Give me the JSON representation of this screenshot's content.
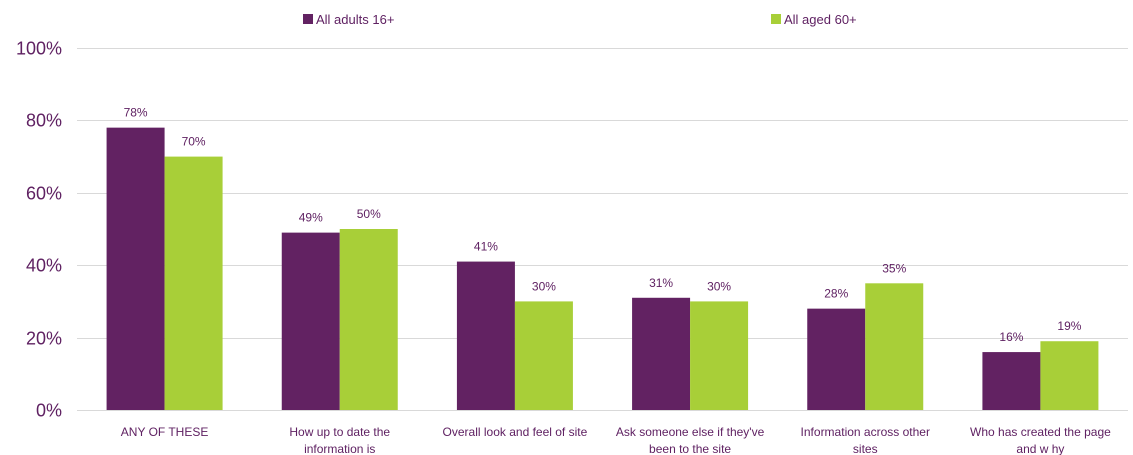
{
  "chart_data": {
    "type": "bar",
    "categories": [
      [
        "ANY OF THESE"
      ],
      [
        "How  up to date the",
        "information is"
      ],
      [
        "Overall look and feel of site"
      ],
      [
        "Ask someone else if they've",
        "been to the site"
      ],
      [
        "Information across other",
        "sites"
      ],
      [
        "Who has created the page",
        "and w hy"
      ]
    ],
    "series": [
      {
        "name": "All adults 16+",
        "values": [
          78,
          49,
          41,
          31,
          28,
          16
        ],
        "color": "#622262"
      },
      {
        "name": "All aged 60+",
        "values": [
          70,
          50,
          30,
          30,
          35,
          19
        ],
        "color": "#a8cf38"
      }
    ],
    "ylim": [
      0,
      100
    ],
    "yticks": [
      0,
      20,
      40,
      60,
      80,
      100
    ],
    "ytick_labels": [
      "0%",
      "20%",
      "40%",
      "60%",
      "80%",
      "100%"
    ],
    "value_suffix": "%",
    "grid": true,
    "legend_position": "top",
    "text_color": "#5f2162",
    "title": "",
    "xlabel": "",
    "ylabel": ""
  }
}
